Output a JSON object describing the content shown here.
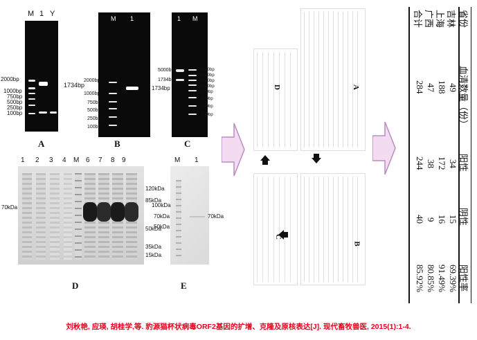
{
  "gel_A": {
    "lanes": [
      "M",
      "1",
      "Y"
    ],
    "markers": [
      "2000bp",
      "1000bp",
      "750bp",
      "500bp",
      "250bp",
      "100bp"
    ],
    "band": "1734bp",
    "letter": "A"
  },
  "gel_B": {
    "lanes": [
      "M",
      "1"
    ],
    "markers": [
      "2000bp",
      "1000bp",
      "750bp",
      "500bp",
      "250bp",
      "100bp"
    ],
    "band": "1734bp",
    "letter": "B"
  },
  "gel_C": {
    "lanes": [
      "1",
      "M"
    ],
    "left_labels": [
      "5000bp",
      "1734bp"
    ],
    "markers": [
      "5.000bp",
      "2.000bp",
      "1.500bp",
      "1.000bp",
      "750bp",
      "500bp",
      "250bp",
      "100bp"
    ],
    "letter": "C"
  },
  "gel_D": {
    "lanes": [
      "1",
      "2",
      "3",
      "4",
      "M",
      "6",
      "7",
      "8",
      "9"
    ],
    "left_label": "70kDa",
    "markers": [
      "120kDa",
      "85kDa",
      "50kDa",
      "35kDa",
      "15kDa"
    ],
    "letter": "D"
  },
  "gel_E": {
    "lanes": [
      "M",
      "1"
    ],
    "markers": [
      "100kDa",
      "70kDa",
      "50kDa"
    ],
    "band": "70kDa",
    "letter": "E"
  },
  "middle": {
    "letters": [
      "A",
      "B",
      "C",
      "D"
    ]
  },
  "stats": {
    "headers": [
      "省份",
      "血清数量（份）",
      "阳性",
      "阴性",
      "阳性率"
    ],
    "rows": [
      [
        "吉林",
        "49",
        "34",
        "15",
        "69.39%"
      ],
      [
        "上海",
        "188",
        "172",
        "16",
        "91.49%"
      ],
      [
        "广西",
        "47",
        "38",
        "9",
        "80.85%"
      ],
      [
        "合计",
        "284",
        "244",
        "40",
        "85.92%"
      ]
    ]
  },
  "citation": "刘秋艳, 应瑛, 胡桂学,等. 豹源猫杯状病毒ORF2基因的扩增、克隆及原核表达[J]. 现代畜牧兽医, 2015(1):1-4.",
  "colors": {
    "citation": "#e8001c",
    "arrow_fill": "#f3dcf2",
    "arrow_stroke": "#b98cc0"
  }
}
